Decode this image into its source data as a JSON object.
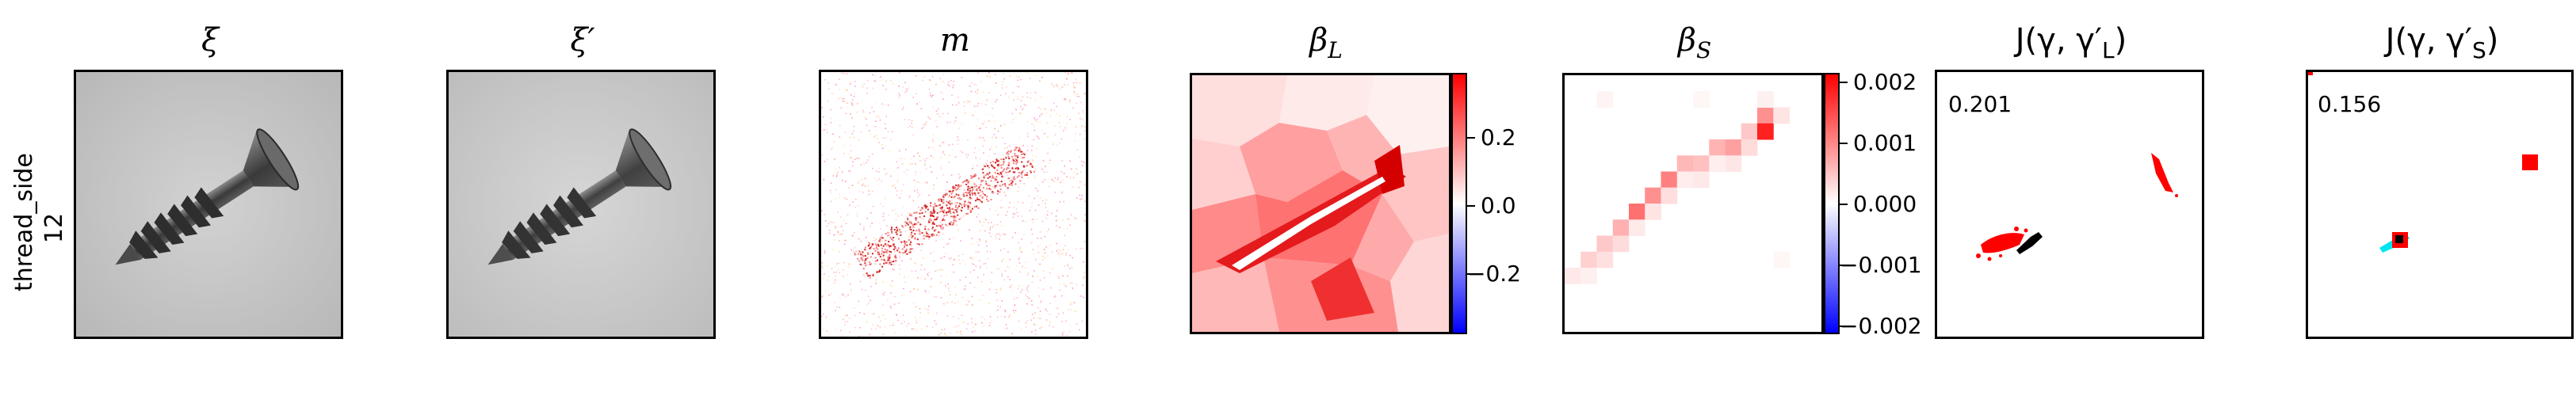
{
  "row_label": [
    "thread_side",
    "12"
  ],
  "panels": [
    {
      "title": "ξ"
    },
    {
      "title": "ξ′"
    },
    {
      "title": "m"
    },
    {
      "title": "β",
      "subscript": "L"
    },
    {
      "title": "β",
      "subscript": "S"
    },
    {
      "title": "J(γ, γ′",
      "subscript": "L",
      "suffix": ")"
    },
    {
      "title": "J(γ, γ′",
      "subscript": "S",
      "suffix": ")"
    }
  ],
  "colorbars": {
    "beta_L": {
      "ticks": [
        "0.2",
        "0.0",
        "−0.2"
      ],
      "range": [
        -0.35,
        0.35
      ]
    },
    "beta_S": {
      "ticks": [
        "0.002",
        "0.001",
        "0.000",
        "−0.001",
        "−0.002"
      ],
      "range": [
        -0.0021,
        0.0021
      ]
    }
  },
  "scores": {
    "L": "0.201",
    "S": "0.156"
  },
  "colors": {
    "positive": "#ff0000",
    "negative": "#0000ff",
    "overlap": "#000000",
    "gt": "#00e5ee"
  }
}
